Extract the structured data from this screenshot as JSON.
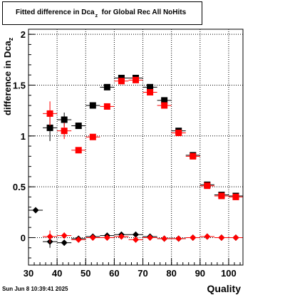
{
  "chart_data": {
    "type": "scatter",
    "title_main": "Fitted difference in Dca",
    "title_sub": "z",
    "title_rest": "for Global Rec All NoHits",
    "ylabel_main": "difference in Dca",
    "ylabel_sub": "z",
    "xlabel": "Quality",
    "xlim": [
      30,
      105
    ],
    "ylim": [
      -0.27,
      2.05
    ],
    "xticks": [
      30,
      40,
      50,
      60,
      70,
      80,
      90,
      100
    ],
    "yticks": [
      0,
      0.5,
      1,
      1.5,
      2
    ],
    "ytick_labels": [
      "0",
      "0.5",
      "1",
      "1.5",
      "2"
    ],
    "grid": true,
    "series": [
      {
        "color": "#000000",
        "marker": "square",
        "points": [
          {
            "x": 37.5,
            "y": 1.08,
            "ex": 2.5,
            "ey": 0.13
          },
          {
            "x": 42.5,
            "y": 1.16,
            "ex": 2.5,
            "ey": 0.07
          },
          {
            "x": 47.5,
            "y": 1.1,
            "ex": 2.5,
            "ey": 0.03
          },
          {
            "x": 52.5,
            "y": 1.3,
            "ex": 2.5,
            "ey": 0.02
          },
          {
            "x": 57.5,
            "y": 1.48,
            "ex": 2.5,
            "ey": 0.02
          },
          {
            "x": 62.5,
            "y": 1.57,
            "ex": 2.5,
            "ey": 0.02
          },
          {
            "x": 67.5,
            "y": 1.57,
            "ex": 2.5,
            "ey": 0.02
          },
          {
            "x": 72.5,
            "y": 1.48,
            "ex": 2.5,
            "ey": 0.02
          },
          {
            "x": 77.5,
            "y": 1.35,
            "ex": 2.5,
            "ey": 0.02
          },
          {
            "x": 82.5,
            "y": 1.05,
            "ex": 2.5,
            "ey": 0.02
          },
          {
            "x": 87.5,
            "y": 0.81,
            "ex": 2.5,
            "ey": 0.02
          },
          {
            "x": 92.5,
            "y": 0.52,
            "ex": 2.5,
            "ey": 0.02
          },
          {
            "x": 97.5,
            "y": 0.42,
            "ex": 2.5,
            "ey": 0.02
          },
          {
            "x": 102.5,
            "y": 0.41,
            "ex": 2.5,
            "ey": 0.02
          }
        ]
      },
      {
        "color": "#ff0000",
        "marker": "square",
        "points": [
          {
            "x": 37.5,
            "y": 1.22,
            "ex": 2.5,
            "ey": 0.12
          },
          {
            "x": 42.5,
            "y": 1.05,
            "ex": 2.5,
            "ey": 0.08
          },
          {
            "x": 47.5,
            "y": 0.86,
            "ex": 2.5,
            "ey": 0.03
          },
          {
            "x": 52.5,
            "y": 0.99,
            "ex": 2.5,
            "ey": 0.02
          },
          {
            "x": 57.5,
            "y": 1.29,
            "ex": 2.5,
            "ey": 0.02
          },
          {
            "x": 62.5,
            "y": 1.54,
            "ex": 2.5,
            "ey": 0.02
          },
          {
            "x": 67.5,
            "y": 1.55,
            "ex": 2.5,
            "ey": 0.02
          },
          {
            "x": 72.5,
            "y": 1.43,
            "ex": 2.5,
            "ey": 0.02
          },
          {
            "x": 77.5,
            "y": 1.3,
            "ex": 2.5,
            "ey": 0.02
          },
          {
            "x": 82.5,
            "y": 1.03,
            "ex": 2.5,
            "ey": 0.02
          },
          {
            "x": 87.5,
            "y": 0.8,
            "ex": 2.5,
            "ey": 0.02
          },
          {
            "x": 92.5,
            "y": 0.51,
            "ex": 2.5,
            "ey": 0.02
          },
          {
            "x": 97.5,
            "y": 0.41,
            "ex": 2.5,
            "ey": 0.02
          },
          {
            "x": 102.5,
            "y": 0.4,
            "ex": 2.5,
            "ey": 0.02
          }
        ]
      },
      {
        "color": "#000000",
        "marker": "diamond",
        "points": [
          {
            "x": 32.5,
            "y": 0.27,
            "ex": 2.5,
            "ey": 0.0
          },
          {
            "x": 37.5,
            "y": -0.04,
            "ex": 2.5,
            "ey": 0.06
          },
          {
            "x": 42.5,
            "y": -0.05,
            "ex": 2.5,
            "ey": 0.03
          },
          {
            "x": 47.5,
            "y": -0.01,
            "ex": 2.5,
            "ey": 0.02
          },
          {
            "x": 52.5,
            "y": 0.01,
            "ex": 2.5,
            "ey": 0.01
          },
          {
            "x": 57.5,
            "y": 0.02,
            "ex": 2.5,
            "ey": 0.01
          },
          {
            "x": 62.5,
            "y": 0.03,
            "ex": 2.5,
            "ey": 0.01
          },
          {
            "x": 67.5,
            "y": 0.03,
            "ex": 2.5,
            "ey": 0.01
          },
          {
            "x": 72.5,
            "y": 0.01,
            "ex": 2.5,
            "ey": 0.01
          },
          {
            "x": 77.5,
            "y": -0.01,
            "ex": 2.5,
            "ey": 0.01
          },
          {
            "x": 82.5,
            "y": -0.01,
            "ex": 2.5,
            "ey": 0.01
          },
          {
            "x": 87.5,
            "y": 0.0,
            "ex": 2.5,
            "ey": 0.01
          },
          {
            "x": 92.5,
            "y": 0.01,
            "ex": 2.5,
            "ey": 0.01
          },
          {
            "x": 97.5,
            "y": 0.0,
            "ex": 2.5,
            "ey": 0.01
          },
          {
            "x": 102.5,
            "y": 0.0,
            "ex": 2.5,
            "ey": 0.01
          }
        ]
      },
      {
        "color": "#ff0000",
        "marker": "diamond",
        "points": [
          {
            "x": 37.5,
            "y": 0.01,
            "ex": 2.5,
            "ey": 0.06
          },
          {
            "x": 42.5,
            "y": 0.02,
            "ex": 2.5,
            "ey": 0.03
          },
          {
            "x": 47.5,
            "y": -0.02,
            "ex": 2.5,
            "ey": 0.02
          },
          {
            "x": 52.5,
            "y": 0.0,
            "ex": 2.5,
            "ey": 0.01
          },
          {
            "x": 57.5,
            "y": 0.0,
            "ex": 2.5,
            "ey": 0.01
          },
          {
            "x": 62.5,
            "y": 0.01,
            "ex": 2.5,
            "ey": 0.01
          },
          {
            "x": 67.5,
            "y": -0.02,
            "ex": 2.5,
            "ey": 0.01
          },
          {
            "x": 72.5,
            "y": 0.0,
            "ex": 2.5,
            "ey": 0.01
          },
          {
            "x": 77.5,
            "y": -0.01,
            "ex": 2.5,
            "ey": 0.01
          },
          {
            "x": 82.5,
            "y": -0.01,
            "ex": 2.5,
            "ey": 0.01
          },
          {
            "x": 87.5,
            "y": 0.0,
            "ex": 2.5,
            "ey": 0.01
          },
          {
            "x": 92.5,
            "y": 0.01,
            "ex": 2.5,
            "ey": 0.01
          },
          {
            "x": 97.5,
            "y": 0.0,
            "ex": 2.5,
            "ey": 0.01
          },
          {
            "x": 102.5,
            "y": 0.0,
            "ex": 2.5,
            "ey": 0.01
          }
        ]
      }
    ]
  },
  "footer": {
    "datestamp": "Sun Jun  8 10:39:41 2025"
  }
}
